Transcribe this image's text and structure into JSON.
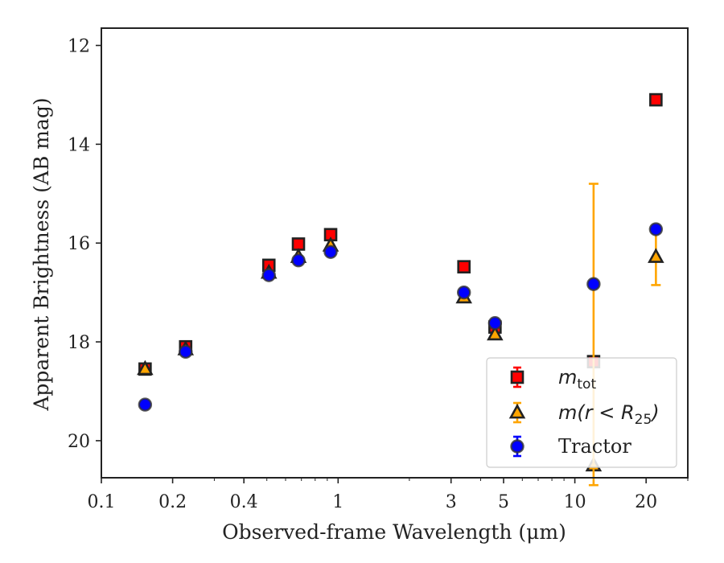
{
  "chart_data": {
    "type": "scatter",
    "xlabel": "Observed-frame Wavelength (μm)",
    "ylabel": "Apparent Brightness (AB mag)",
    "xscale": "log",
    "xlim": [
      0.1,
      30
    ],
    "ylim": [
      20.75,
      11.65
    ],
    "y_inverted": true,
    "xticks": [
      0.1,
      0.2,
      0.4,
      1,
      3,
      5,
      10,
      20
    ],
    "xtick_labels": [
      "0.1",
      "0.2",
      "0.4",
      "1",
      "3",
      "5",
      "10",
      "20"
    ],
    "yticks": [
      12,
      14,
      16,
      18,
      20
    ],
    "ytick_labels": [
      "12",
      "14",
      "16",
      "18",
      "20"
    ],
    "grid": false,
    "legend_position": "bottom-right",
    "series": [
      {
        "name": "m_tot",
        "legend_main": "m",
        "legend_sub": "tot",
        "marker": "square",
        "color": "#ff0000",
        "error_color": "#ff0000",
        "points": [
          {
            "x": 0.153,
            "y": 18.55
          },
          {
            "x": 0.227,
            "y": 18.1
          },
          {
            "x": 0.51,
            "y": 16.45
          },
          {
            "x": 0.68,
            "y": 16.02
          },
          {
            "x": 0.93,
            "y": 15.83
          },
          {
            "x": 3.4,
            "y": 16.48
          },
          {
            "x": 4.6,
            "y": 17.7
          },
          {
            "x": 12.0,
            "y": 18.4
          },
          {
            "x": 22.0,
            "y": 13.1
          }
        ]
      },
      {
        "name": "m(r < R_25)",
        "legend_main": "m(r < R",
        "legend_sub": "25",
        "legend_tail": ")",
        "marker": "triangle",
        "color": "#ffa500",
        "error_color": "#ffa500",
        "points": [
          {
            "x": 0.153,
            "y": 18.55
          },
          {
            "x": 0.227,
            "y": 18.15
          },
          {
            "x": 0.51,
            "y": 16.6
          },
          {
            "x": 0.68,
            "y": 16.28
          },
          {
            "x": 0.93,
            "y": 16.05
          },
          {
            "x": 3.4,
            "y": 17.1
          },
          {
            "x": 4.6,
            "y": 17.85
          },
          {
            "x": 12.0,
            "y": 20.5
          },
          {
            "x": 22.0,
            "y": 16.28,
            "yerr_low": 15.75,
            "yerr_high": 16.85
          }
        ]
      },
      {
        "name": "Tractor",
        "legend_main": "Tractor",
        "marker": "circle",
        "color": "#0000ff",
        "error_color": "#0000ff",
        "points": [
          {
            "x": 0.153,
            "y": 19.27
          },
          {
            "x": 0.227,
            "y": 18.2
          },
          {
            "x": 0.51,
            "y": 16.65
          },
          {
            "x": 0.68,
            "y": 16.35
          },
          {
            "x": 0.93,
            "y": 16.18
          },
          {
            "x": 3.4,
            "y": 17.0
          },
          {
            "x": 4.6,
            "y": 17.62
          },
          {
            "x": 12.0,
            "y": 16.83,
            "yerr_low": 14.8,
            "yerr_high": 20.9,
            "err_color": "#ffa500"
          },
          {
            "x": 22.0,
            "y": 15.72
          }
        ]
      }
    ]
  }
}
